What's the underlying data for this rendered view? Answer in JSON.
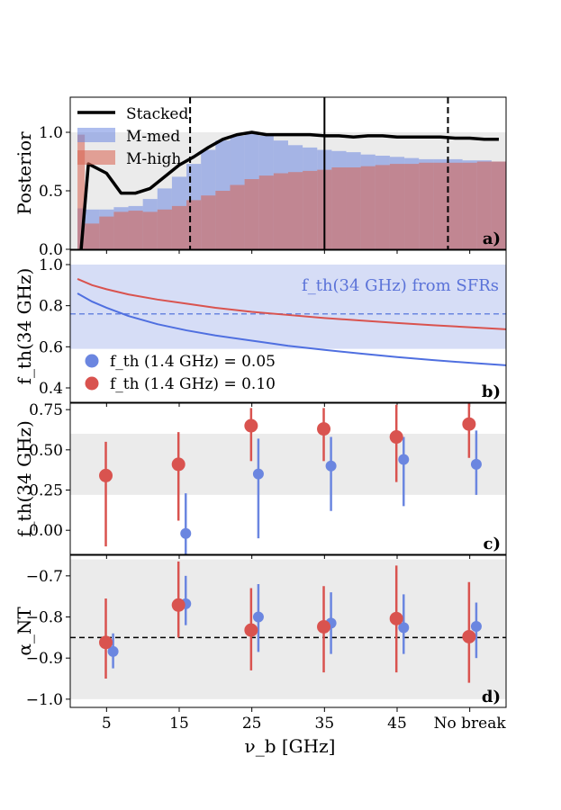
{
  "figure": {
    "shared_x": {
      "xlabel": "ν_b [GHz]",
      "tick_labels": [
        "5",
        "15",
        "25",
        "35",
        "45",
        "No break"
      ],
      "tick_positions": [
        5,
        15,
        25,
        35,
        45,
        55
      ],
      "xlim": [
        0,
        60
      ]
    }
  },
  "chart_data": [
    {
      "type": "area",
      "panel_label": "a)",
      "ylabel": "Posterior",
      "ylim": [
        0,
        1.3
      ],
      "yticks": [
        "0.0",
        "0.5",
        "1.0"
      ],
      "ytick_values": [
        0,
        0.5,
        1.0
      ],
      "shaded_band": [
        0,
        1.0
      ],
      "vertical_lines": [
        {
          "x": 35,
          "style": "solid"
        },
        {
          "x": 16.5,
          "style": "dashed"
        },
        {
          "x": 52,
          "style": "dashed"
        }
      ],
      "legend": {
        "placement": "top-left",
        "entries": [
          "Stacked",
          "M-med",
          "M-high"
        ]
      },
      "bin_edges": [
        1,
        2,
        4,
        6,
        8,
        10,
        12,
        14,
        16,
        18,
        20,
        22,
        24,
        26,
        28,
        30,
        32,
        34,
        36,
        38,
        40,
        42,
        44,
        46,
        48,
        50,
        52,
        54,
        56,
        58,
        60
      ],
      "series": [
        {
          "name": "Stacked",
          "kind": "line",
          "color": "#000000",
          "x": [
            1.5,
            2.5,
            5,
            7,
            9,
            11,
            13,
            15,
            17,
            19,
            21,
            23,
            25,
            27,
            29,
            31,
            33,
            35,
            37,
            39,
            41,
            43,
            45,
            47,
            49,
            51,
            53,
            55,
            57,
            59
          ],
          "values": [
            0.0,
            0.73,
            0.65,
            0.48,
            0.48,
            0.52,
            0.62,
            0.72,
            0.79,
            0.87,
            0.94,
            0.98,
            1.0,
            0.98,
            0.98,
            0.98,
            0.98,
            0.97,
            0.97,
            0.96,
            0.97,
            0.97,
            0.96,
            0.96,
            0.96,
            0.96,
            0.95,
            0.95,
            0.94,
            0.94
          ]
        },
        {
          "name": "M-med",
          "kind": "hist",
          "color": "#6b86e0",
          "values": [
            0.35,
            0.34,
            0.34,
            0.36,
            0.37,
            0.43,
            0.52,
            0.62,
            0.73,
            0.85,
            0.93,
            0.97,
            0.99,
            0.97,
            0.93,
            0.89,
            0.87,
            0.85,
            0.84,
            0.83,
            0.81,
            0.8,
            0.79,
            0.78,
            0.77,
            0.77,
            0.77,
            0.76,
            0.76,
            0.75
          ]
        },
        {
          "name": "M-high",
          "kind": "hist",
          "color": "#d9604e",
          "values": [
            0.98,
            0.22,
            0.28,
            0.32,
            0.33,
            0.32,
            0.34,
            0.37,
            0.42,
            0.46,
            0.5,
            0.55,
            0.6,
            0.63,
            0.65,
            0.66,
            0.67,
            0.68,
            0.7,
            0.7,
            0.71,
            0.72,
            0.73,
            0.73,
            0.74,
            0.74,
            0.74,
            0.74,
            0.75,
            0.75
          ]
        }
      ]
    },
    {
      "type": "line",
      "panel_label": "b)",
      "ylabel": "f_th(34 GHz)",
      "ylim": [
        0.33,
        1.07
      ],
      "yticks": [
        "0.4",
        "0.6",
        "0.8",
        "1.0"
      ],
      "ytick_values": [
        0.4,
        0.6,
        0.8,
        1.0
      ],
      "band": {
        "range": [
          0.59,
          1.0
        ],
        "center": 0.76,
        "label": "f_th(34 GHz) from SFRs",
        "color": "#6b86e0"
      },
      "legend": {
        "placement": "bottom-left",
        "entries": [
          "f_th (1.4 GHz) = 0.05",
          "f_th (1.4 GHz) = 0.10"
        ]
      },
      "series": [
        {
          "name": "f_th (1.4 GHz) = 0.05",
          "color": "#4f6fe0",
          "x": [
            1,
            3,
            5,
            8,
            12,
            16,
            20,
            25,
            30,
            35,
            40,
            45,
            50,
            55,
            60
          ],
          "values": [
            0.86,
            0.82,
            0.79,
            0.75,
            0.71,
            0.68,
            0.655,
            0.63,
            0.605,
            0.585,
            0.567,
            0.55,
            0.535,
            0.522,
            0.51
          ]
        },
        {
          "name": "f_th (1.4 GHz) = 0.10",
          "color": "#d9534f",
          "x": [
            1,
            3,
            5,
            8,
            12,
            16,
            20,
            25,
            30,
            35,
            40,
            45,
            50,
            55,
            60
          ],
          "values": [
            0.93,
            0.9,
            0.88,
            0.855,
            0.83,
            0.81,
            0.79,
            0.77,
            0.755,
            0.74,
            0.728,
            0.716,
            0.705,
            0.695,
            0.685
          ]
        }
      ]
    },
    {
      "type": "scatter",
      "panel_label": "c)",
      "ylabel": "f_th(34 GHz)",
      "ylim": [
        -0.15,
        0.79
      ],
      "yticks": [
        "0.00",
        "0.25",
        "0.50",
        "0.75"
      ],
      "ytick_values": [
        0,
        0.25,
        0.5,
        0.75
      ],
      "shaded_band": [
        0.22,
        0.6
      ],
      "series": [
        {
          "name": "f_th (1.4 GHz) = 0.05",
          "color": "#6b86e0",
          "x": [
            5.9,
            15.9,
            25.9,
            35.9,
            45.9,
            55.9
          ],
          "values": [
            null,
            -0.02,
            0.35,
            0.4,
            0.44,
            0.41
          ],
          "err_low": [
            null,
            -0.15,
            -0.05,
            0.12,
            0.15,
            0.22
          ],
          "err_high": [
            null,
            0.23,
            0.57,
            0.58,
            0.58,
            0.62
          ]
        },
        {
          "name": "f_th (1.4 GHz) = 0.10",
          "color": "#d9534f",
          "x": [
            4.9,
            14.9,
            24.9,
            34.9,
            44.9,
            54.9
          ],
          "values": [
            0.34,
            0.41,
            0.65,
            0.63,
            0.58,
            0.66
          ],
          "err_low": [
            -0.1,
            0.06,
            0.43,
            0.43,
            0.3,
            0.45
          ],
          "err_high": [
            0.55,
            0.61,
            0.76,
            0.76,
            0.78,
            0.79
          ]
        }
      ]
    },
    {
      "type": "scatter",
      "panel_label": "d)",
      "ylabel": "α_NT",
      "ylim": [
        -1.02,
        -0.65
      ],
      "yticks": [
        "−1.0",
        "−0.9",
        "−0.8",
        "−0.7"
      ],
      "ytick_values": [
        -1.0,
        -0.9,
        -0.8,
        -0.7
      ],
      "shaded_band": [
        -1.0,
        -0.66
      ],
      "hline": -0.85,
      "series": [
        {
          "name": "f_th (1.4 GHz) = 0.05",
          "color": "#6b86e0",
          "x": [
            5.9,
            15.9,
            25.9,
            35.9,
            45.9,
            55.9
          ],
          "values": [
            -0.884,
            -0.768,
            -0.8,
            -0.815,
            -0.826,
            -0.823
          ],
          "err_low": [
            -0.925,
            -0.82,
            -0.885,
            -0.89,
            -0.89,
            -0.9
          ],
          "err_high": [
            -0.84,
            -0.7,
            -0.72,
            -0.74,
            -0.745,
            -0.765
          ]
        },
        {
          "name": "f_th (1.4 GHz) = 0.10",
          "color": "#d9534f",
          "x": [
            4.9,
            14.9,
            24.9,
            34.9,
            44.9,
            54.9
          ],
          "values": [
            -0.862,
            -0.771,
            -0.832,
            -0.824,
            -0.804,
            -0.848
          ],
          "err_low": [
            -0.95,
            -0.85,
            -0.93,
            -0.935,
            -0.935,
            -0.96
          ],
          "err_high": [
            -0.755,
            -0.665,
            -0.73,
            -0.725,
            -0.675,
            -0.715
          ]
        }
      ]
    }
  ]
}
